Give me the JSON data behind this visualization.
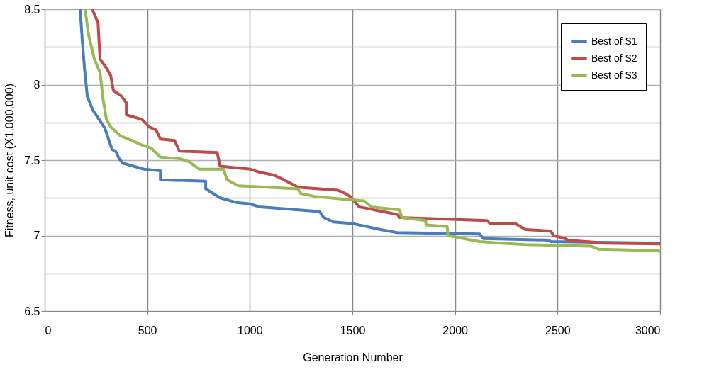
{
  "chart_data": {
    "type": "line",
    "xlabel": "Generation Number",
    "ylabel": "Fitness, unit cost (X1,000,000)",
    "xlim": [
      0,
      3000
    ],
    "xticks": [
      0,
      500,
      1000,
      1500,
      2000,
      2500,
      3000
    ],
    "ylim": [
      6.5,
      8.5
    ],
    "yticks": [
      6.5,
      {
        "value": 6.75,
        "label": null
      },
      7,
      {
        "value": 7.25,
        "label": null
      },
      7.5,
      {
        "value": 7.75,
        "label": null
      },
      8,
      {
        "value": 8.25,
        "label": null
      },
      8.5
    ],
    "grid": true,
    "legend": "top right",
    "marker": "none",
    "line_style": "solid",
    "series": [
      {
        "name": "Best of S1",
        "color": "#4a7ebb",
        "x": [
          173,
          183,
          194,
          208,
          235,
          270,
          294,
          311,
          329,
          346,
          363,
          381,
          484,
          564,
          564,
          785,
          785,
          855,
          934,
          1000,
          1048,
          1339,
          1360,
          1408,
          1500,
          1637,
          1718,
          2121,
          2138,
          2457,
          2467,
          3000
        ],
        "values": [
          8.5,
          8.3,
          8.11,
          7.92,
          7.83,
          7.76,
          7.71,
          7.64,
          7.57,
          7.56,
          7.51,
          7.48,
          7.44,
          7.43,
          7.37,
          7.36,
          7.31,
          7.25,
          7.22,
          7.21,
          7.19,
          7.16,
          7.12,
          7.09,
          7.08,
          7.04,
          7.02,
          7.01,
          6.98,
          6.97,
          6.96,
          6.95
        ]
      },
      {
        "name": "Best of S2",
        "color": "#be4b48",
        "x": [
          232,
          260,
          270,
          301,
          322,
          335,
          370,
          398,
          398,
          474,
          509,
          543,
          564,
          633,
          657,
          841,
          855,
          1003,
          1048,
          1118,
          1166,
          1235,
          1429,
          1464,
          1488,
          1533,
          1720,
          1730,
          2156,
          2170,
          2294,
          2343,
          2467,
          2481,
          2536,
          2550,
          2734,
          3000
        ],
        "values": [
          8.5,
          8.41,
          8.17,
          8.11,
          8.06,
          7.96,
          7.93,
          7.88,
          7.8,
          7.77,
          7.72,
          7.7,
          7.64,
          7.63,
          7.56,
          7.55,
          7.46,
          7.44,
          7.42,
          7.4,
          7.37,
          7.32,
          7.3,
          7.28,
          7.26,
          7.19,
          7.14,
          7.12,
          7.1,
          7.08,
          7.08,
          7.04,
          7.03,
          7.0,
          6.98,
          6.97,
          6.95,
          6.945
        ]
      },
      {
        "name": "Best of S3",
        "color": "#98b954",
        "x": [
          197,
          214,
          242,
          270,
          284,
          301,
          322,
          370,
          426,
          474,
          519,
          564,
          657,
          703,
          754,
          872,
          889,
          945,
          1083,
          1235,
          1246,
          1315,
          1464,
          1557,
          1592,
          1730,
          1741,
          1858,
          1858,
          1962,
          1966,
          2042,
          2121,
          2225,
          2343,
          2664,
          2699,
          2990,
          3000
        ],
        "values": [
          8.5,
          8.33,
          8.17,
          8.08,
          7.91,
          7.77,
          7.72,
          7.66,
          7.63,
          7.6,
          7.58,
          7.52,
          7.51,
          7.49,
          7.44,
          7.44,
          7.37,
          7.33,
          7.32,
          7.31,
          7.28,
          7.26,
          7.24,
          7.23,
          7.19,
          7.17,
          7.12,
          7.1,
          7.07,
          7.06,
          7.0,
          6.98,
          6.96,
          6.95,
          6.94,
          6.93,
          6.91,
          6.9,
          6.89
        ]
      }
    ]
  }
}
